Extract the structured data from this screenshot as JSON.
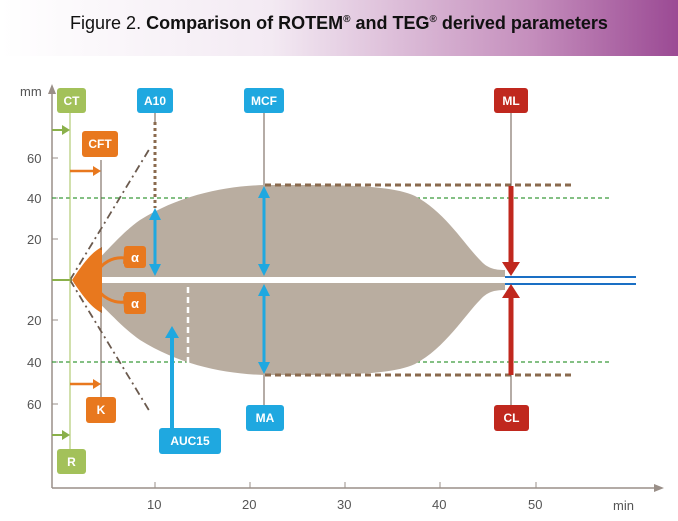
{
  "header": {
    "figure_label": "Figure 2.",
    "title_part1": "Comparison of ROTEM",
    "title_reg1": "®",
    "title_part2": " and TEG",
    "title_reg2": "®",
    "title_part3": " derived parameters"
  },
  "axes": {
    "y_unit": "mm",
    "x_unit": "min",
    "y_ticks_top": [
      "60",
      "40",
      "20"
    ],
    "y_ticks_bottom": [
      "20",
      "40",
      "60"
    ],
    "x_ticks": [
      "10",
      "20",
      "30",
      "40",
      "50"
    ]
  },
  "labels": {
    "ct": "CT",
    "cft": "CFT",
    "a10": "A10",
    "mcf": "MCF",
    "ml": "ML",
    "r": "R",
    "k": "K",
    "auc15": "AUC15",
    "ma": "MA",
    "cl": "CL",
    "alpha_top": "α",
    "alpha_bottom": "α"
  },
  "colors": {
    "green": "#a3c15a",
    "orange": "#e8781e",
    "blue": "#1fa8e0",
    "red": "#c0281e",
    "shape": "#b9ada0",
    "dashed_brown": "#8a6a4e",
    "dashed_green": "#3a9a3a",
    "baseline_blue": "#1a6fc4"
  }
}
